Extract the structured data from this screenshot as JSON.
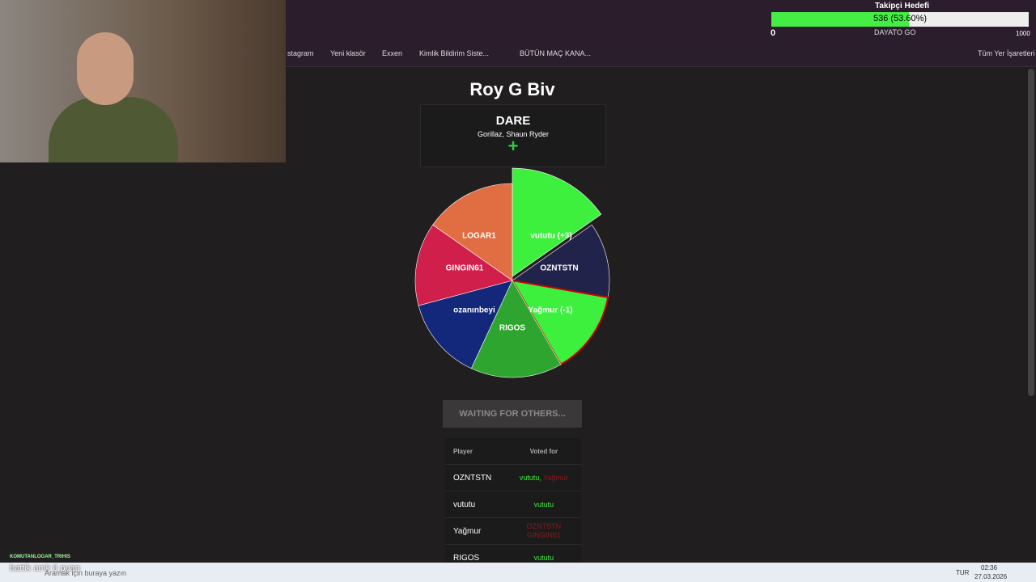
{
  "overlay": {
    "title": "Takipçi Hedefi",
    "progress": "536 (53.60%)",
    "min": "0",
    "max": "1000",
    "site_tab": "DAYATO GO"
  },
  "bookmarks": [
    "stagram",
    "Yeni klasör",
    "Exxen",
    "Kimlik Bildirim Siste...",
    "BÜTÜN MAÇ KANA...",
    "Tüm Yer İşaretleri"
  ],
  "game": {
    "title": "Roy G Biv",
    "card": {
      "type": "DARE",
      "subtitle": "Gorillaz, Shaun Ryder",
      "plus": "+"
    },
    "wheel": [
      "vututu (+3)",
      "OZNTSTN",
      "Yağmur (-1)",
      "RIGOS",
      "ozanınbeyi",
      "GINGIN61",
      "LOGAR1"
    ],
    "button": "WAITING FOR OTHERS...",
    "table": {
      "headers": [
        "Player",
        "Voted for"
      ],
      "rows": [
        [
          "OZNTSTN",
          [
            "vututu,",
            "Yağmur"
          ]
        ],
        [
          "vututu",
          [
            "vututu"
          ]
        ],
        [
          "Yağmur",
          [
            "OZNTSTN",
            "GINGIN61"
          ]
        ],
        [
          "RIGOS",
          [
            "vututu"
          ]
        ]
      ]
    }
  },
  "chat": {
    "user": "KOMUTANLOGAR_TRIHIS",
    "message": "battik amk 0 puan"
  },
  "taskbar": {
    "search": "Aramak için buraya yazın",
    "lang": "TUR",
    "time": "02:36",
    "date": "27.03.2026"
  }
}
